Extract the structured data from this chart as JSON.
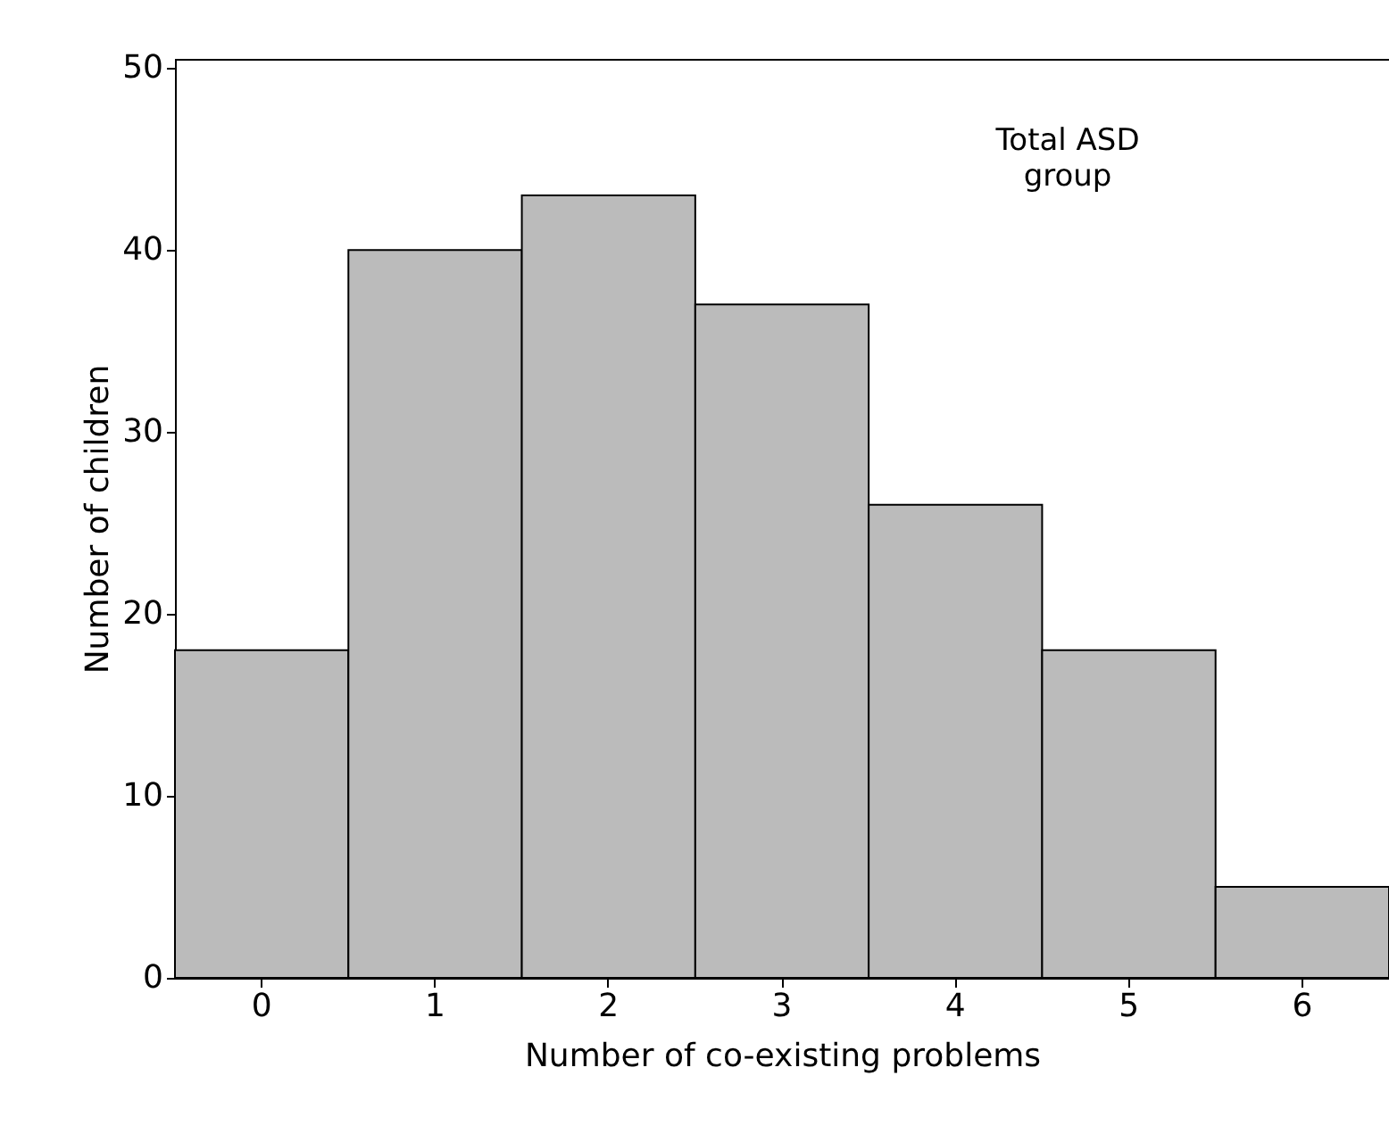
{
  "chart_data": {
    "type": "bar",
    "xlabel": "Number of co-existing problems",
    "ylabel": "Number of children",
    "categories": [
      "0",
      "1",
      "2",
      "3",
      "4",
      "5",
      "6"
    ],
    "values": [
      18,
      40,
      43,
      37,
      26,
      18,
      5
    ],
    "color": "#bbbbbb",
    "ylim": [
      0,
      50.5
    ],
    "yticks": [
      0,
      10,
      20,
      30,
      40,
      50
    ],
    "grid": false,
    "annotations": [
      "Total ASD\ngroup"
    ]
  }
}
